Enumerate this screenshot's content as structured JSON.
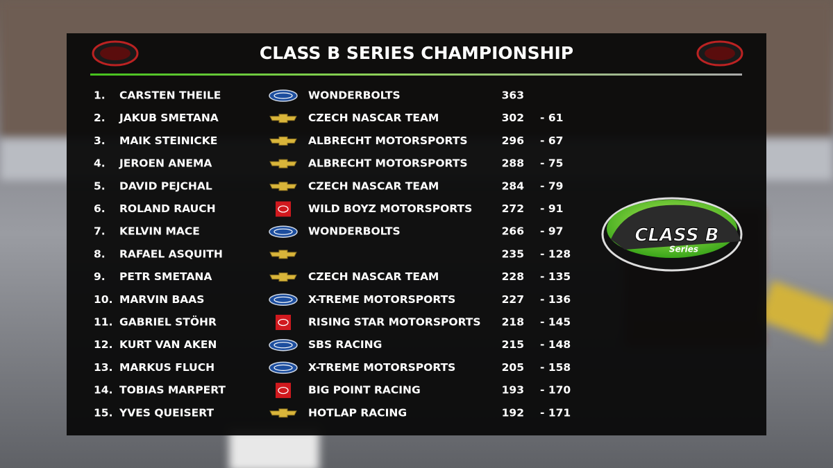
{
  "header": {
    "title": "CLASS B SERIES CHAMPIONSHIP"
  },
  "badge": {
    "text": "CLASS B",
    "subtitle": "Series"
  },
  "table": {
    "rows": [
      [
        "1.",
        "CARSTEN THEILE",
        "WONDERBOLTS",
        "363",
        null
      ],
      [
        "2.",
        "JAKUB SMETANA",
        "CZECH NASCAR TEAM",
        "302",
        "- 61"
      ],
      [
        "3.",
        "MAIK STEINICKE",
        "ALBRECHT MOTORSPORTS",
        "296",
        "- 67"
      ],
      [
        "4.",
        "JEROEN ANEMA",
        "ALBRECHT MOTORSPORTS",
        "288",
        "- 75"
      ],
      [
        "5.",
        "DAVID PEJCHAL",
        "CZECH NASCAR TEAM",
        "284",
        "- 79"
      ],
      [
        "6.",
        "ROLAND RAUCH",
        "WILD BOYZ MOTORSPORTS",
        "272",
        "- 91"
      ],
      [
        "7.",
        "KELVIN MACE",
        "WONDERBOLTS",
        "266",
        "- 97"
      ],
      [
        "8.",
        "RAFAEL ASQUITH",
        null,
        "235",
        "- 128"
      ],
      [
        "9.",
        "PETR SMETANA",
        "CZECH NASCAR TEAM",
        "228",
        "- 135"
      ],
      [
        "10.",
        "MARVIN BAAS",
        "X-TREME MOTORSPORTS",
        "227",
        "- 136"
      ],
      [
        "11.",
        "GABRIEL STÖHR",
        "RISING STAR MOTORSPORTS",
        "218",
        "- 145"
      ],
      [
        "12.",
        "KURT VAN AKEN",
        "SBS RACING",
        "215",
        "- 148"
      ],
      [
        "13.",
        "MARKUS FLUCH",
        "X-TREME MOTORSPORTS",
        "205",
        "- 158"
      ],
      [
        "14.",
        "TOBIAS MARPERT",
        "BIG POINT RACING",
        "193",
        "- 170"
      ],
      [
        "15.",
        "YVES QUEISERT",
        "HOTLAP RACING",
        "192",
        "- 171"
      ]
    ]
  }
}
